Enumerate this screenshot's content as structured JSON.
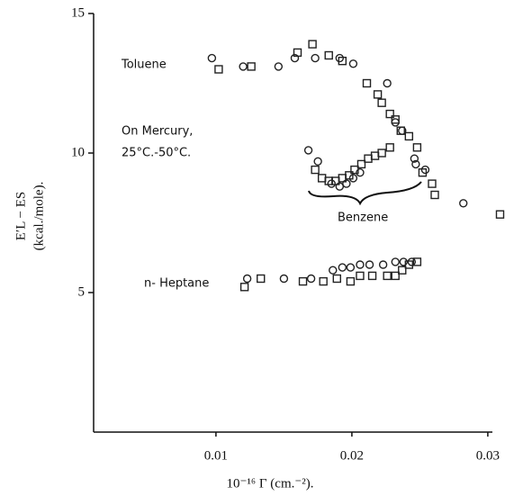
{
  "chart_data": {
    "type": "scatter",
    "x_label": "10⁻¹⁶ Γ (cm.⁻²).",
    "y_label": "E′L − ES",
    "y_label_unit": "(kcal./mole).",
    "annotations": [
      "Toluene",
      "On Mercury,",
      "25°C.-50°C.",
      "Benzene",
      "n- Heptane"
    ],
    "xlim": [
      0.001,
      0.031
    ],
    "ylim": [
      0,
      15
    ],
    "xticks": [
      0.01,
      0.02,
      0.03
    ],
    "yticks": [
      5,
      10,
      15
    ],
    "series": [
      {
        "marker": "circle",
        "color": "#222",
        "x": [
          0.0097,
          0.012,
          0.0146,
          0.0158,
          0.0173,
          0.0191,
          0.0201,
          0.0226,
          0.0232,
          0.0237,
          0.0246,
          0.0254,
          0.0282,
          0.0168,
          0.0175,
          0.0185,
          0.0191,
          0.0196,
          0.0201,
          0.0206,
          0.0247,
          0.0123,
          0.015,
          0.017,
          0.0186,
          0.0193,
          0.0199,
          0.0206,
          0.0213,
          0.0223,
          0.0232,
          0.0238,
          0.0244
        ],
        "values": [
          13.4,
          13.1,
          13.1,
          13.4,
          13.4,
          13.4,
          13.2,
          12.5,
          11.1,
          10.8,
          9.8,
          9.4,
          8.2,
          10.1,
          9.7,
          8.9,
          8.8,
          8.9,
          9.1,
          9.3,
          9.6,
          5.5,
          5.5,
          5.5,
          5.8,
          5.9,
          5.9,
          6.0,
          6.0,
          6.0,
          6.1,
          6.1,
          6.1
        ]
      },
      {
        "marker": "square",
        "color": "#222",
        "x": [
          0.0102,
          0.0126,
          0.016,
          0.0171,
          0.0183,
          0.0193,
          0.0211,
          0.0219,
          0.0222,
          0.0228,
          0.0232,
          0.0236,
          0.0242,
          0.0248,
          0.0252,
          0.0259,
          0.0261,
          0.0309,
          0.0173,
          0.0178,
          0.0183,
          0.0188,
          0.0193,
          0.0198,
          0.0202,
          0.0207,
          0.0212,
          0.0217,
          0.0222,
          0.0228,
          0.0121,
          0.0133,
          0.0164,
          0.0179,
          0.0189,
          0.0199,
          0.0206,
          0.0215,
          0.0226,
          0.0232,
          0.0237,
          0.0242,
          0.0248
        ],
        "values": [
          13.0,
          13.1,
          13.6,
          13.9,
          13.5,
          13.3,
          12.5,
          12.1,
          11.8,
          11.4,
          11.2,
          10.8,
          10.6,
          10.2,
          9.3,
          8.9,
          8.5,
          7.8,
          9.4,
          9.1,
          9.0,
          9.0,
          9.1,
          9.2,
          9.4,
          9.6,
          9.8,
          9.9,
          10.0,
          10.2,
          5.2,
          5.5,
          5.4,
          5.4,
          5.5,
          5.4,
          5.6,
          5.6,
          5.6,
          5.6,
          5.8,
          6.0,
          6.1
        ]
      }
    ]
  }
}
